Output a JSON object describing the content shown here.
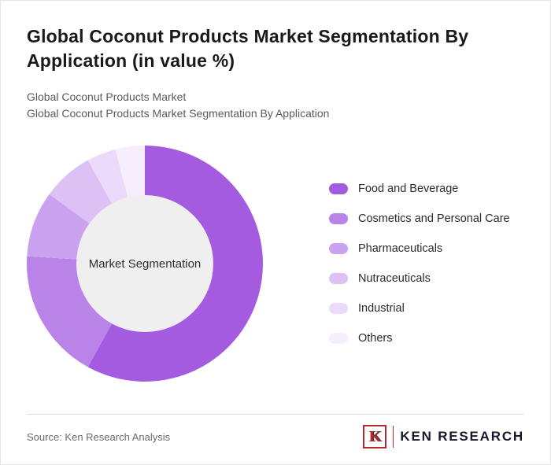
{
  "page": {
    "title": "Global Coconut Products Market Segmentation By Application (in value %)",
    "subtitle_line1": "Global Coconut Products Market",
    "subtitle_line2": "Global Coconut Products Market Segmentation By Application"
  },
  "chart_data": {
    "type": "pie",
    "donut": true,
    "title": "Global Coconut Products Market Segmentation By Application (in value %)",
    "center_label": "Market Segmentation",
    "categories": [
      "Food and Beverage",
      "Cosmetics and Personal Care",
      "Pharmaceuticals",
      "Nutraceuticals",
      "Industrial",
      "Others"
    ],
    "values": [
      58,
      18,
      9,
      7,
      4,
      4
    ],
    "colors": [
      "#a45be0",
      "#b983e8",
      "#cba2ef",
      "#ddc1f5",
      "#ecdafa",
      "#f6eefd"
    ],
    "center_color": "#efefef",
    "inner_radius_ratio": 0.58,
    "start_angle_deg": 0,
    "direction": "clockwise",
    "legend_position": "right"
  },
  "footer": {
    "source": "Source: Ken Research Analysis",
    "logo_letter": "K",
    "logo_text": "KEN RESEARCH"
  }
}
